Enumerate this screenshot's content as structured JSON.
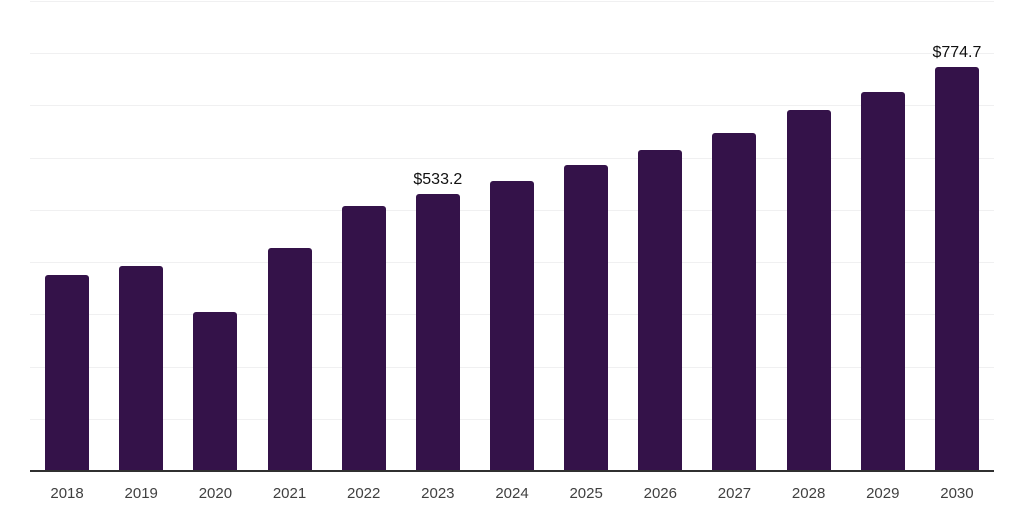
{
  "chart_data": {
    "type": "bar",
    "title": "",
    "xlabel": "",
    "ylabel": "",
    "categories": [
      "2018",
      "2019",
      "2020",
      "2021",
      "2022",
      "2023",
      "2024",
      "2025",
      "2026",
      "2027",
      "2028",
      "2029",
      "2030"
    ],
    "values": [
      377,
      395,
      307,
      429,
      510,
      533.2,
      558,
      587,
      617,
      650,
      693,
      728,
      774.7
    ],
    "ylim": [
      0,
      900
    ],
    "gridline_values": [
      100,
      200,
      300,
      400,
      500,
      600,
      700,
      800,
      900
    ],
    "grid": "horizontal",
    "legend_position": "none",
    "value_prefix": "$",
    "annotations": [
      {
        "category": "2023",
        "label": "$533.2"
      },
      {
        "category": "2030",
        "label": "$774.7"
      }
    ]
  },
  "style": {
    "background_color": "#ffffff",
    "bar_color": "#341249",
    "gridline_color": "#f0f0f1",
    "axis_line_color": "#303030",
    "tick_label_color": "#404040",
    "value_label_color": "#111111"
  }
}
